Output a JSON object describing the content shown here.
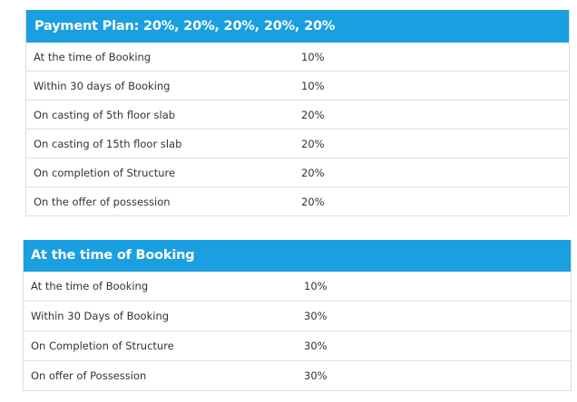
{
  "plans": [
    {
      "title": "Payment Plan: 20%, 20%, 20%, 20%, 20%",
      "rows": [
        {
          "stage": "At the time of Booking",
          "percent": "10%"
        },
        {
          "stage": "Within 30 days of Booking",
          "percent": "10%"
        },
        {
          "stage": "On casting of 5th floor slab",
          "percent": "20%"
        },
        {
          "stage": "On casting of 15th floor slab",
          "percent": "20%"
        },
        {
          "stage": "On completion of Structure",
          "percent": "20%"
        },
        {
          "stage": "On the offer of possession",
          "percent": "20%"
        }
      ]
    },
    {
      "title": "At the time of Booking",
      "rows": [
        {
          "stage": "At the time of Booking",
          "percent": "10%"
        },
        {
          "stage": "Within 30 Days of Booking",
          "percent": "30%"
        },
        {
          "stage": "On Completion of Structure",
          "percent": "30%"
        },
        {
          "stage": "On offer of Possession",
          "percent": "30%"
        }
      ]
    }
  ],
  "colors": {
    "header_bg": "#1a9fe0",
    "header_text": "#ffffff",
    "row_border": "#cfe3f1",
    "body_text": "#333333"
  }
}
